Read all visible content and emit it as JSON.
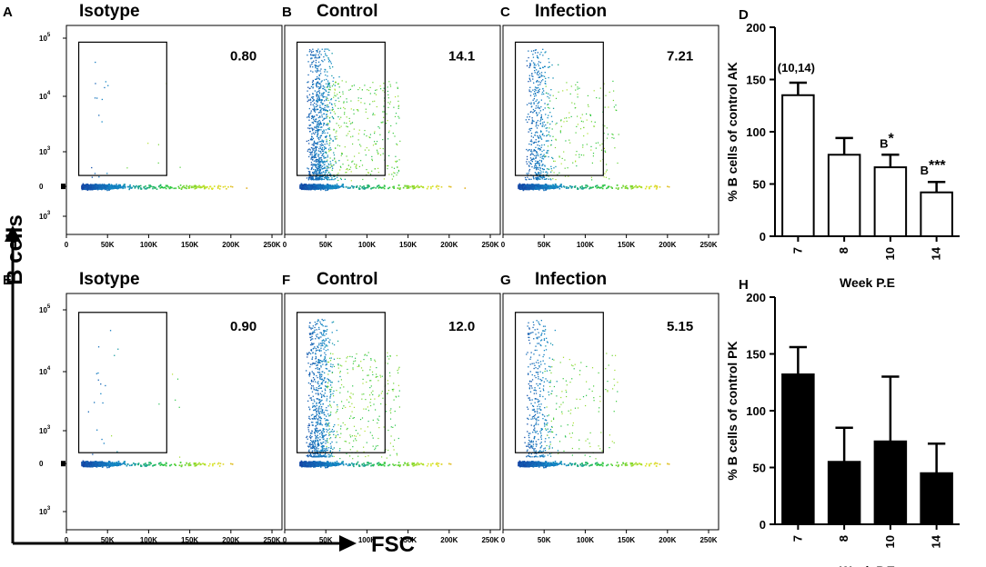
{
  "axis_labels": {
    "y": "B cells",
    "x": "FSC"
  },
  "chart_data": [
    {
      "type": "scatter",
      "panel": "A",
      "title": "Isotype",
      "gate_percent": "0.80",
      "xlabel": "FSC",
      "ylabel": "B cells",
      "x_ticks": [
        "0",
        "50K",
        "100K",
        "150K",
        "200K",
        "250K"
      ],
      "y_ticks": [
        {
          "base": "10",
          "exp": "5"
        },
        {
          "base": "10",
          "exp": "4"
        },
        {
          "base": "10",
          "exp": "3"
        },
        {
          "base": "0",
          "exp": ""
        },
        {
          "base": "10",
          "exp": "3"
        }
      ],
      "ylim": [
        0,
        262144
      ],
      "gate": {
        "x": [
          15000,
          122000
        ]
      }
    },
    {
      "type": "scatter",
      "panel": "B",
      "title": "Control",
      "gate_percent": "14.1",
      "xlabel": "FSC",
      "ylabel": "B cells",
      "x_ticks": [
        "0",
        "50K",
        "100K",
        "150K",
        "200K",
        "250K"
      ],
      "y_ticks": [],
      "ylim": [
        0,
        262144
      ],
      "gate": {
        "x": [
          15000,
          122000
        ]
      }
    },
    {
      "type": "scatter",
      "panel": "C",
      "title": "Infection",
      "gate_percent": "7.21",
      "xlabel": "FSC",
      "ylabel": "B cells",
      "x_ticks": [
        "0",
        "50K",
        "100K",
        "150K",
        "200K",
        "250K"
      ],
      "y_ticks": [],
      "ylim": [
        0,
        262144
      ],
      "gate": {
        "x": [
          15000,
          122000
        ]
      }
    },
    {
      "type": "bar",
      "panel": "D",
      "style": "open",
      "categories": [
        "7",
        "8",
        "10",
        "14"
      ],
      "values": [
        135,
        78,
        66,
        42
      ],
      "errors": [
        12,
        16,
        12,
        10
      ],
      "annotations": [
        {
          "category": "7",
          "text": "(10,14)"
        },
        {
          "category": "10",
          "text": "B",
          "sup": "*"
        },
        {
          "category": "14",
          "text": "B",
          "sup": "***"
        }
      ],
      "xlabel": "Week P.E",
      "ylabel": "% B cells of control AK",
      "ylim": [
        0,
        200
      ],
      "yticks": [
        0,
        50,
        100,
        150,
        200
      ]
    },
    {
      "type": "scatter",
      "panel": "E",
      "title": "Isotype",
      "gate_percent": "0.90",
      "xlabel": "FSC",
      "ylabel": "B cells",
      "x_ticks": [
        "0",
        "50K",
        "100K",
        "150K",
        "200K",
        "250K"
      ],
      "y_ticks": [
        {
          "base": "10",
          "exp": "5"
        },
        {
          "base": "10",
          "exp": "4"
        },
        {
          "base": "10",
          "exp": "3"
        },
        {
          "base": "0",
          "exp": ""
        },
        {
          "base": "10",
          "exp": "3"
        }
      ],
      "ylim": [
        0,
        262144
      ],
      "gate": {
        "x": [
          15000,
          122000
        ]
      }
    },
    {
      "type": "scatter",
      "panel": "F",
      "title": "Control",
      "gate_percent": "12.0",
      "xlabel": "FSC",
      "ylabel": "B cells",
      "x_ticks": [
        "0",
        "50K",
        "100K",
        "150K",
        "200K",
        "250K"
      ],
      "y_ticks": [],
      "ylim": [
        0,
        262144
      ],
      "gate": {
        "x": [
          15000,
          122000
        ]
      }
    },
    {
      "type": "scatter",
      "panel": "G",
      "title": "Infection",
      "gate_percent": "5.15",
      "xlabel": "FSC",
      "ylabel": "B cells",
      "x_ticks": [
        "0",
        "50K",
        "100K",
        "150K",
        "200K",
        "250K"
      ],
      "y_ticks": [],
      "ylim": [
        0,
        262144
      ],
      "gate": {
        "x": [
          15000,
          122000
        ]
      }
    },
    {
      "type": "bar",
      "panel": "H",
      "style": "filled",
      "categories": [
        "7",
        "8",
        "10",
        "14"
      ],
      "values": [
        132,
        55,
        73,
        45
      ],
      "errors": [
        24,
        30,
        57,
        26
      ],
      "annotations": [],
      "xlabel": "Week P.E",
      "ylabel": "% B cells of control PK",
      "ylim": [
        0,
        200
      ],
      "yticks": [
        0,
        50,
        100,
        150,
        200
      ]
    }
  ]
}
